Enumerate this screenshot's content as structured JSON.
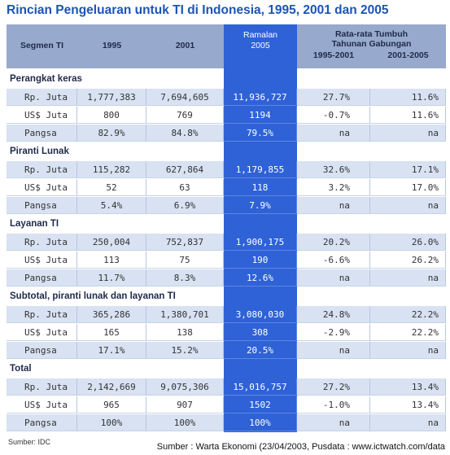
{
  "title": "Rincian Pengeluaran untuk TI di Indonesia, 1995, 2001 dan 2005",
  "header": {
    "segment": "Segmen TI",
    "col1995": "1995",
    "col2001": "2001",
    "forecast": [
      "Ramalan",
      "2005"
    ],
    "growth": [
      "Rata-rata Tumbuh",
      "Tahunan Gabungan"
    ],
    "growth_periods": [
      "1995-2001",
      "2001-2005"
    ]
  },
  "sections": [
    {
      "name": "Perangkat keras",
      "rows": [
        [
          "Rp. Juta",
          "1,777,383",
          "7,694,605",
          "11,936,727",
          "27.7%",
          "11.6%"
        ],
        [
          "US$ Juta",
          "800",
          "769",
          "1194",
          "-0.7%",
          "11.6%"
        ],
        [
          "Pangsa",
          "82.9%",
          "84.8%",
          "79.5%",
          "na",
          "na"
        ]
      ]
    },
    {
      "name": "Piranti Lunak",
      "rows": [
        [
          "Rp. Juta",
          "115,282",
          "627,864",
          "1,179,855",
          "32.6%",
          "17.1%"
        ],
        [
          "US$ Juta",
          "52",
          "63",
          "118",
          "3.2%",
          "17.0%"
        ],
        [
          "Pangsa",
          "5.4%",
          "6.9%",
          "7.9%",
          "na",
          "na"
        ]
      ]
    },
    {
      "name": "Layanan TI",
      "rows": [
        [
          "Rp. Juta",
          "250,004",
          "752,837",
          "1,900,175",
          "20.2%",
          "26.0%"
        ],
        [
          "US$ Juta",
          "113",
          "75",
          "190",
          "-6.6%",
          "26.2%"
        ],
        [
          "Pangsa",
          "11.7%",
          "8.3%",
          "12.6%",
          "na",
          "na"
        ]
      ]
    },
    {
      "name": "Subtotal, piranti lunak dan layanan TI",
      "rows": [
        [
          "Rp. Juta",
          "365,286",
          "1,380,701",
          "3,080,030",
          "24.8%",
          "22.2%"
        ],
        [
          "US$ Juta",
          "165",
          "138",
          "308",
          "-2.9%",
          "22.2%"
        ],
        [
          "Pangsa",
          "17.1%",
          "15.2%",
          "20.5%",
          "na",
          "na"
        ]
      ]
    },
    {
      "name": "Total",
      "rows": [
        [
          "Rp. Juta",
          "2,142,669",
          "9,075,306",
          "15,016,757",
          "27.2%",
          "13.4%"
        ],
        [
          "US$ Juta",
          "965",
          "907",
          "1502",
          "-1.0%",
          "13.4%"
        ],
        [
          "Pangsa",
          "100%",
          "100%",
          "100%",
          "na",
          "na"
        ]
      ]
    }
  ],
  "source": "Sumber: IDC",
  "credit": "Sumber : Warta Ekonomi (23/04/2003, Pusdata : www.ictwatch.com/data"
}
